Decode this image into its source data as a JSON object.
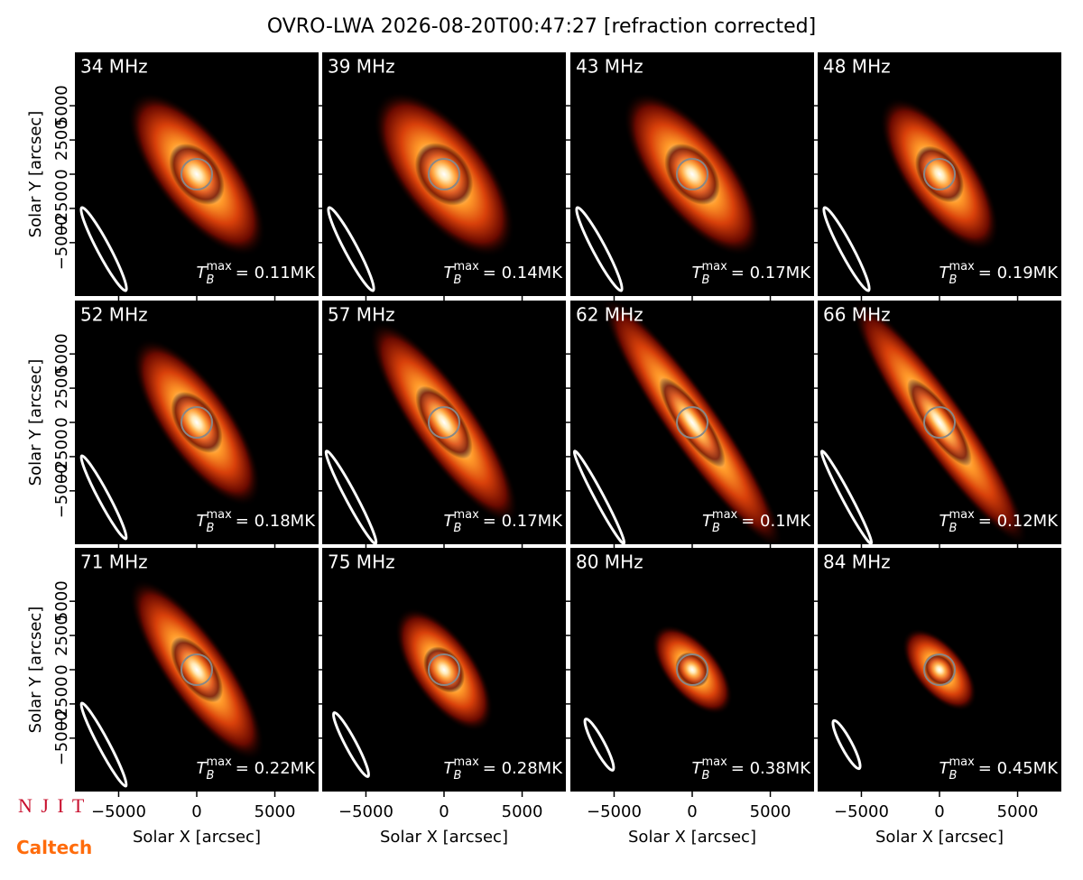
{
  "title": "OVRO-LWA 2026-08-20T00:47:27 [refraction corrected]",
  "xlabel": "Solar X [arcsec]",
  "ylabel": "Solar Y [arcsec]",
  "xlim": [
    -7800,
    7800
  ],
  "ylim": [
    -8900,
    8900
  ],
  "xticks": [
    {
      "value": -5000,
      "label": "−5000"
    },
    0,
    5000
  ],
  "yticks": [
    {
      "value": -5000,
      "label": "−5000"
    },
    {
      "value": -2500,
      "label": "−2500"
    },
    0,
    2500,
    5000
  ],
  "tb_symbol": {
    "base": "T",
    "sub": "B",
    "sup": "max"
  },
  "logos": [
    "N J I T",
    "Caltech"
  ],
  "chart_data": [
    {
      "type": "image",
      "label": "34 MHz",
      "tb_max": "= 0.11MK"
    },
    {
      "type": "image",
      "label": "39 MHz",
      "tb_max": "= 0.14MK"
    },
    {
      "type": "image",
      "label": "43 MHz",
      "tb_max": "= 0.17MK"
    },
    {
      "type": "image",
      "label": "48 MHz",
      "tb_max": "= 0.19MK"
    },
    {
      "type": "image",
      "label": "52 MHz",
      "tb_max": "= 0.18MK"
    },
    {
      "type": "image",
      "label": "57 MHz",
      "tb_max": "= 0.17MK"
    },
    {
      "type": "image",
      "label": "62 MHz",
      "tb_max": "= 0.1MK"
    },
    {
      "type": "image",
      "label": "66 MHz",
      "tb_max": "= 0.12MK"
    },
    {
      "type": "image",
      "label": "71 MHz",
      "tb_max": "= 0.22MK"
    },
    {
      "type": "image",
      "label": "75 MHz",
      "tb_max": "= 0.28MK"
    },
    {
      "type": "image",
      "label": "80 MHz",
      "tb_max": "= 0.38MK"
    },
    {
      "type": "image",
      "label": "84 MHz",
      "tb_max": "= 0.45MK"
    }
  ]
}
